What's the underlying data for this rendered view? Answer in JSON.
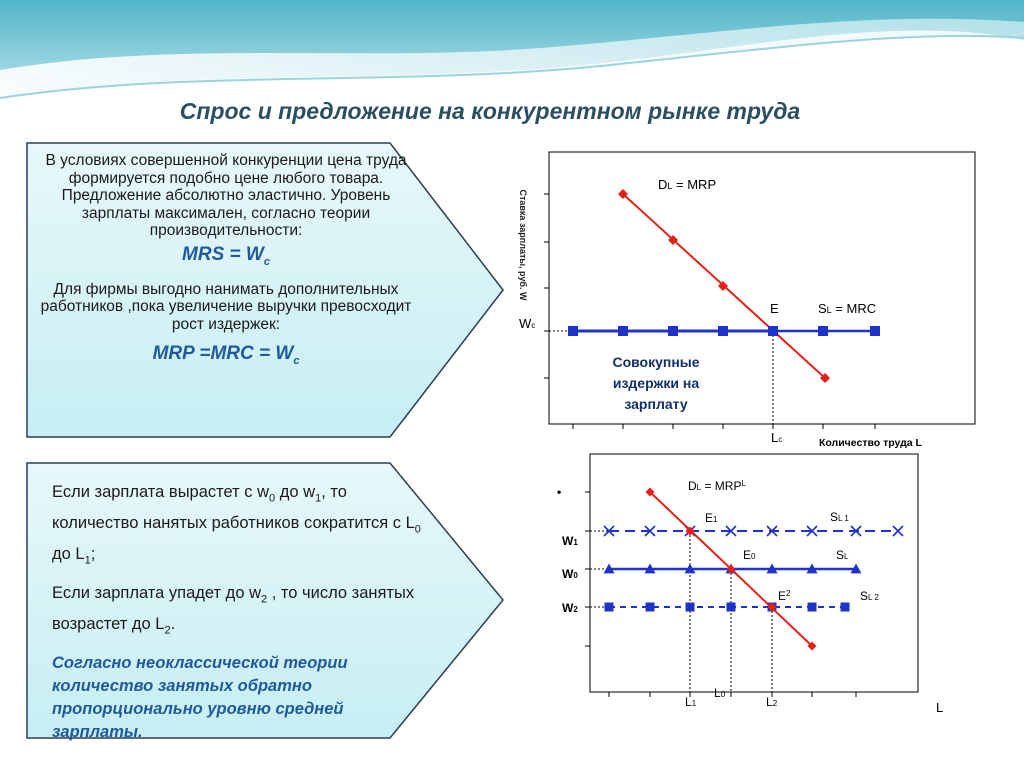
{
  "title": "Спрос и предложение на конкурентном рынке труда",
  "box1": {
    "p1": "В условиях совершенной конкуренции цена труда формируется подобно цене любого товара. Предложение абсолютно эластично. Уровень зарплаты максимален, согласно теории производительности:",
    "formula1_main": "MRS = W",
    "formula1_sub": "c",
    "p2": "Для фирмы выгодно нанимать дополнительных работников ,пока увеличение выручки превосходит рост издержек:",
    "formula2_main": "MRP =MRC = W",
    "formula2_sub": "c"
  },
  "box2": {
    "p1_a": "Если зарплата вырастет с w",
    "p1_s1": "0",
    "p1_b": " до w",
    "p1_s2": "1",
    "p1_c": ", то количество нанятых работников сократится с L",
    "p1_s3": "0",
    "p1_d": " до L",
    "p1_s4": "1",
    "p1_e": ";",
    "p2_a": "Если зарплата упадет до w",
    "p2_s1": "2",
    "p2_b": " , то число занятых возрастет до L",
    "p2_s2": "2",
    "p2_c": ".",
    "note": "Согласно неоклассической теории количество занятых обратно пропорционально уровню средней зарплаты."
  },
  "chart1": {
    "ylabel": "Ставка зарплаты, руб. W",
    "demand_label": "D",
    "demand_sub": "L",
    "demand_rest": " = MRP",
    "supply_label": "S",
    "supply_sub": "L",
    "supply_rest": " = MRC",
    "eq_label": "E",
    "w_label": "W",
    "w_sub": "c",
    "lc_label": "L",
    "lc_sub": "c",
    "xlabel": "Количество труда L",
    "area_label": [
      "Совокупные",
      "издержки на",
      "зарплату"
    ],
    "colors": {
      "demand": "#e32119",
      "supply": "#1f33c8"
    }
  },
  "chart2": {
    "y_mark": "•",
    "demand_label": "D",
    "demand_sub": "L",
    "demand_rest": " = MRP",
    "demand_sup": "L",
    "s1_label": "S",
    "s1_sub": "L 1",
    "s0_label": "S",
    "s0_sub": "L",
    "s2_label": "S",
    "s2_sub": "L 2",
    "e1_label": "E",
    "e1_sub": "1",
    "e0_label": "E",
    "e0_sub": "0",
    "e2_label": "E",
    "e2_sup": "2",
    "w1_label": "W",
    "w1_sub": "1",
    "w0_label": "W",
    "w0_sub": "0",
    "w2_label": "W",
    "w2_sub": "2",
    "l1_label": "L",
    "l1_sub": "1",
    "l0_label": "L",
    "l0_sub": "0",
    "l2_label": "L",
    "l2_sub": "2",
    "x_label": "L",
    "colors": {
      "demand": "#e32119",
      "supply": "#1f33c8"
    }
  }
}
